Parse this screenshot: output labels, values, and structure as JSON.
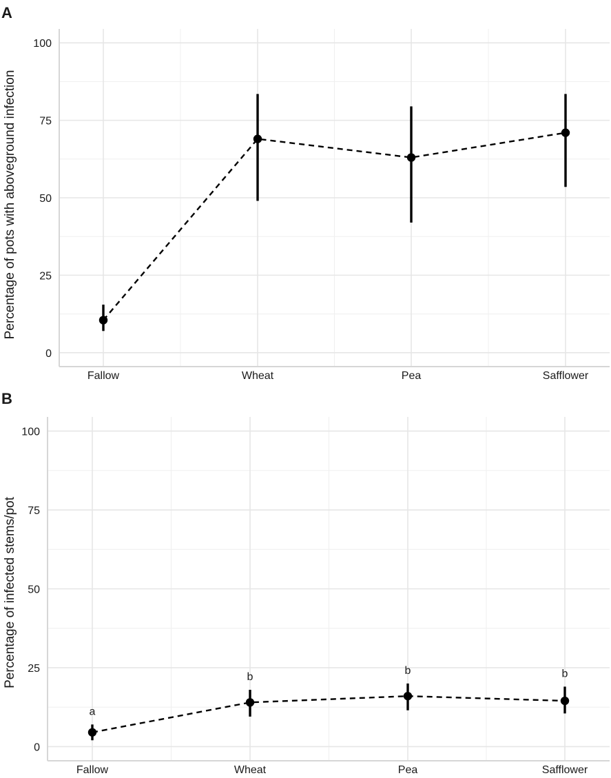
{
  "chart_data": [
    {
      "panel": "A",
      "type": "line",
      "title": "",
      "xlabel": "",
      "ylabel": "Percentage of pots with aboveground infection",
      "categories": [
        "Fallow",
        "Wheat",
        "Pea",
        "Safflower"
      ],
      "series": [
        {
          "name": "mean",
          "values": [
            10.5,
            69,
            63,
            71
          ],
          "lower": [
            7,
            49,
            42,
            53.5
          ],
          "upper": [
            15.5,
            83.5,
            79.5,
            83.5
          ]
        }
      ],
      "ylim": [
        0,
        100
      ],
      "yticks": [
        "0",
        "25",
        "50",
        "75",
        "100"
      ],
      "significance_labels": [
        "",
        "",
        "",
        ""
      ],
      "grid": true
    },
    {
      "panel": "B",
      "type": "line",
      "title": "",
      "xlabel": "",
      "ylabel": "Percentage of infected stems/pot",
      "categories": [
        "Fallow",
        "Wheat",
        "Pea",
        "Safflower"
      ],
      "series": [
        {
          "name": "mean",
          "values": [
            4.5,
            14,
            16,
            14.5
          ],
          "lower": [
            2,
            9.5,
            11.5,
            10.5
          ],
          "upper": [
            7,
            18,
            20,
            19
          ]
        }
      ],
      "ylim": [
        0,
        100
      ],
      "yticks": [
        "0",
        "25",
        "50",
        "75",
        "100"
      ],
      "significance_labels": [
        "a",
        "b",
        "b",
        "b"
      ],
      "grid": true
    }
  ]
}
